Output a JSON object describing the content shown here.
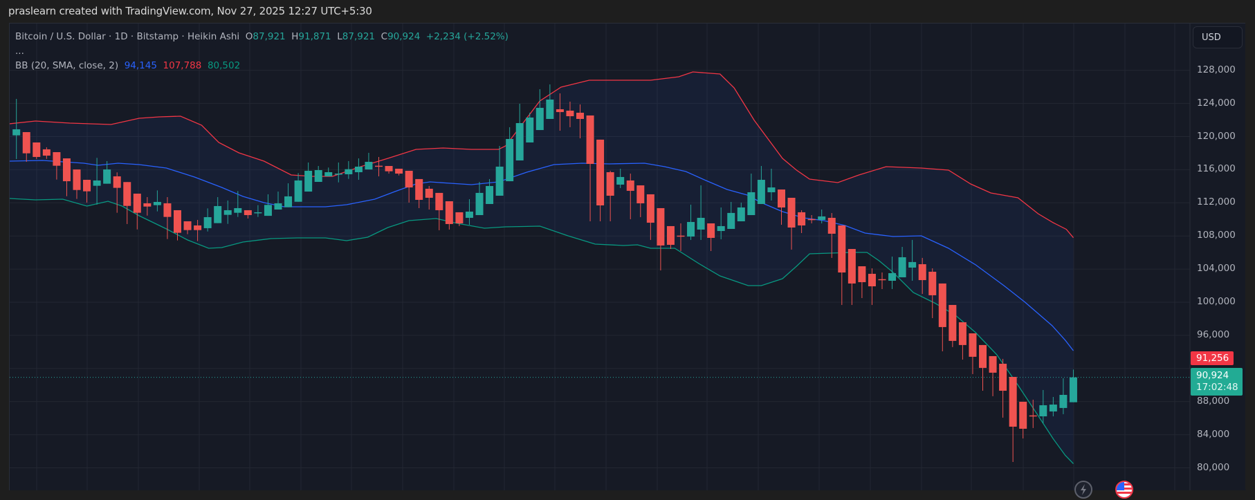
{
  "watermark": "praslearn created with TradingView.com, Nov 27, 2025 12:27 UTC+5:30",
  "legend": {
    "symbol": "Bitcoin / U.S. Dollar · 1D · Bitstamp · Heikin Ashi",
    "o_label": "O",
    "o_value": "87,921",
    "h_label": "H",
    "h_value": "91,871",
    "l_label": "L",
    "l_value": "87,921",
    "c_label": "C",
    "c_value": "90,924",
    "change": "+2,234 (+2.52%)",
    "collapse": "...",
    "bb_name": "BB (20, SMA, close, 2)",
    "bb_basis": "94,145",
    "bb_upper": "107,788",
    "bb_lower": "80,502"
  },
  "currency_button": "USD",
  "price_axis": {
    "labels": [
      "128,000",
      "124,000",
      "120,000",
      "116,000",
      "112,000",
      "108,000",
      "104,000",
      "100,000",
      "96,000",
      "88,000",
      "84,000",
      "80,000"
    ],
    "high_tag": "91,256",
    "last_price_tag": "90,924",
    "countdown": "17:02:48"
  },
  "icons": {
    "bolt": "lightning-icon",
    "flag": "us-flag-icon"
  },
  "colors": {
    "up": "#26a69a",
    "down": "#ef5350",
    "bb_upper": "#f23645",
    "bb_basis": "#2962ff",
    "bb_lower": "#089981",
    "grid": "#232732",
    "background": "#161a25"
  },
  "chart_data": {
    "type": "candlestick",
    "title": "Bitcoin / U.S. Dollar · 1D · Bitstamp · Heikin Ashi",
    "ylabel": "USD",
    "ylim": [
      78000,
      130000
    ],
    "yticks": [
      80000,
      84000,
      88000,
      96000,
      100000,
      104000,
      108000,
      112000,
      116000,
      120000,
      124000,
      128000
    ],
    "grid": true,
    "last_price": 90924,
    "high_marker": 91256,
    "candles": [
      [
        120150,
        124550,
        117290,
        120880
      ],
      [
        120540,
        120540,
        116950,
        117980
      ],
      [
        119290,
        119290,
        117290,
        117540
      ],
      [
        118460,
        118710,
        117310,
        117700
      ],
      [
        118120,
        118120,
        114810,
        116480
      ],
      [
        117370,
        117370,
        112800,
        114610
      ],
      [
        116030,
        116030,
        112470,
        113550
      ],
      [
        114780,
        114780,
        112030,
        113390
      ],
      [
        114060,
        117430,
        111780,
        114700
      ],
      [
        114310,
        117040,
        114310,
        116030
      ],
      [
        115200,
        115680,
        110800,
        113810
      ],
      [
        114510,
        114510,
        109440,
        111630
      ],
      [
        113110,
        113110,
        108790,
        110800
      ],
      [
        111940,
        112690,
        110460,
        111550
      ],
      [
        111720,
        113500,
        110970,
        112110
      ],
      [
        111940,
        112690,
        107630,
        110300
      ],
      [
        111110,
        111110,
        107460,
        108380
      ],
      [
        109770,
        109770,
        108210,
        108710
      ],
      [
        109270,
        109940,
        107380,
        108710
      ],
      [
        108940,
        111330,
        108540,
        110270
      ],
      [
        109550,
        112690,
        109550,
        111610
      ],
      [
        110550,
        112280,
        109460,
        111110
      ],
      [
        110800,
        113420,
        110300,
        111360
      ],
      [
        111110,
        111110,
        110110,
        110520
      ],
      [
        110800,
        111720,
        110300,
        110860
      ],
      [
        110430,
        113030,
        110430,
        111750
      ],
      [
        111190,
        113360,
        111190,
        111940
      ],
      [
        111470,
        114360,
        111470,
        112780
      ],
      [
        112130,
        115590,
        112130,
        114700
      ],
      [
        113360,
        116870,
        113360,
        115870
      ],
      [
        114530,
        116450,
        114530,
        115950
      ],
      [
        115200,
        116260,
        115200,
        115700
      ],
      [
        115480,
        116870,
        114470,
        115530
      ],
      [
        115450,
        117040,
        114890,
        116060
      ],
      [
        115700,
        117370,
        114780,
        116370
      ],
      [
        116030,
        118040,
        116030,
        116950
      ],
      [
        116480,
        117540,
        115200,
        116420
      ],
      [
        116450,
        116450,
        115530,
        115810
      ],
      [
        116120,
        116120,
        115310,
        115530
      ],
      [
        115870,
        115870,
        112030,
        113860
      ],
      [
        114870,
        114870,
        111360,
        112360
      ],
      [
        113700,
        114030,
        111190,
        112610
      ],
      [
        113200,
        113200,
        108690,
        111110
      ],
      [
        112190,
        112190,
        108770,
        109440
      ],
      [
        110860,
        110860,
        109190,
        109520
      ],
      [
        110190,
        112440,
        109350,
        110940
      ],
      [
        110520,
        114530,
        110520,
        113200
      ],
      [
        111860,
        114870,
        111860,
        114030
      ],
      [
        112860,
        118870,
        112860,
        116370
      ],
      [
        114610,
        121130,
        114610,
        119710
      ],
      [
        117120,
        123970,
        117120,
        121630
      ],
      [
        119290,
        122880,
        119290,
        122300
      ],
      [
        120790,
        125720,
        120790,
        123470
      ],
      [
        122130,
        126300,
        122130,
        124470
      ],
      [
        123300,
        125220,
        120710,
        122960
      ],
      [
        123130,
        124220,
        121130,
        122460
      ],
      [
        122880,
        123880,
        119790,
        122130
      ],
      [
        122550,
        122550,
        109770,
        116700
      ],
      [
        119630,
        119630,
        109770,
        111690
      ],
      [
        115700,
        115870,
        109770,
        112860
      ],
      [
        114200,
        116120,
        113780,
        115120
      ],
      [
        114700,
        115530,
        110020,
        113450
      ],
      [
        114110,
        114110,
        110270,
        111940
      ],
      [
        113030,
        113030,
        107520,
        109600
      ],
      [
        111360,
        111360,
        103840,
        106850
      ],
      [
        109190,
        109190,
        106430,
        106930
      ],
      [
        108040,
        109520,
        106180,
        107990
      ],
      [
        107930,
        111780,
        107520,
        109690
      ],
      [
        108770,
        114110,
        107520,
        110190
      ],
      [
        109520,
        109520,
        106180,
        107770
      ],
      [
        108600,
        111440,
        107600,
        109190
      ],
      [
        108850,
        112110,
        108850,
        110780
      ],
      [
        109770,
        112030,
        109770,
        111440
      ],
      [
        110520,
        115530,
        110520,
        113280
      ],
      [
        111860,
        116450,
        111860,
        114780
      ],
      [
        113280,
        116120,
        112280,
        113860
      ],
      [
        113610,
        113610,
        109350,
        111440
      ],
      [
        112610,
        112610,
        106350,
        109020
      ],
      [
        110860,
        111110,
        108350,
        109270
      ],
      [
        110040,
        110520,
        109520,
        110000
      ],
      [
        109940,
        111190,
        109520,
        110360
      ],
      [
        110190,
        110770,
        105350,
        108270
      ],
      [
        109270,
        109270,
        99670,
        103590
      ],
      [
        106430,
        106430,
        99670,
        102260
      ],
      [
        104340,
        104340,
        100500,
        102420
      ],
      [
        103430,
        104090,
        99670,
        101920
      ],
      [
        102780,
        103590,
        101590,
        102730
      ],
      [
        102590,
        105510,
        101590,
        103510
      ],
      [
        103010,
        106680,
        103010,
        105430
      ],
      [
        104180,
        107520,
        102590,
        104850
      ],
      [
        104590,
        105350,
        101000,
        102670
      ],
      [
        103680,
        104090,
        98080,
        100840
      ],
      [
        102260,
        102260,
        94070,
        97000
      ],
      [
        99670,
        99670,
        94580,
        95330
      ],
      [
        97580,
        97580,
        93070,
        94830
      ],
      [
        96240,
        96240,
        91320,
        93410
      ],
      [
        94830,
        94830,
        89310,
        92070
      ],
      [
        93490,
        93490,
        88650,
        91490
      ],
      [
        92570,
        93160,
        86060,
        89310
      ],
      [
        90980,
        90980,
        80710,
        84970
      ],
      [
        87980,
        87980,
        83550,
        84720
      ],
      [
        86330,
        88230,
        84810,
        86280
      ],
      [
        86220,
        89400,
        85390,
        87560
      ],
      [
        86810,
        88560,
        86220,
        87640
      ],
      [
        87230,
        90820,
        86480,
        88810
      ],
      [
        87921,
        91871,
        87921,
        90924
      ]
    ],
    "bollinger_bands": {
      "params": "20, SMA, close, 2",
      "upper": [
        [
          -0.7,
          121545
        ],
        [
          1.9,
          121879
        ],
        [
          5.3,
          121629
        ],
        [
          9.4,
          121462
        ],
        [
          12.2,
          122214
        ],
        [
          14.2,
          122381
        ],
        [
          16.3,
          122465
        ],
        [
          18.4,
          121378
        ],
        [
          20.1,
          119291
        ],
        [
          22.1,
          118038
        ],
        [
          24.6,
          117036
        ],
        [
          27.3,
          115366
        ],
        [
          29.4,
          115199
        ],
        [
          31.4,
          115199
        ],
        [
          34.2,
          116368
        ],
        [
          36.9,
          117370
        ],
        [
          39.7,
          118456
        ],
        [
          42.4,
          118623
        ],
        [
          45.2,
          118456
        ],
        [
          47.9,
          118456
        ],
        [
          48.6,
          118873
        ],
        [
          52.0,
          124301
        ],
        [
          54.1,
          125971
        ],
        [
          56.9,
          126806
        ],
        [
          60.3,
          126806
        ],
        [
          63.0,
          126806
        ],
        [
          65.8,
          127224
        ],
        [
          67.2,
          127808
        ],
        [
          69.9,
          127557
        ],
        [
          71.3,
          125887
        ],
        [
          73.3,
          121963
        ],
        [
          76.1,
          117370
        ],
        [
          77.5,
          115951
        ],
        [
          78.8,
          114865
        ],
        [
          81.6,
          114448
        ],
        [
          83.7,
          115366
        ],
        [
          86.4,
          116368
        ],
        [
          89.9,
          116201
        ],
        [
          92.6,
          115951
        ],
        [
          94.8,
          114281
        ],
        [
          96.8,
          113195
        ],
        [
          99.5,
          112611
        ],
        [
          101.5,
          110690
        ],
        [
          103.0,
          109600
        ],
        [
          104.3,
          108800
        ],
        [
          105.0,
          107788
        ]
      ],
      "basis": [
        [
          -0.7,
          117037
        ],
        [
          2.6,
          117120
        ],
        [
          6.7,
          116786
        ],
        [
          8.1,
          116535
        ],
        [
          10.1,
          116786
        ],
        [
          12.2,
          116619
        ],
        [
          14.9,
          116201
        ],
        [
          17.7,
          115116
        ],
        [
          20.4,
          113863
        ],
        [
          22.5,
          112778
        ],
        [
          24.6,
          112026
        ],
        [
          26.6,
          111525
        ],
        [
          28.7,
          111525
        ],
        [
          30.7,
          111525
        ],
        [
          32.8,
          111775
        ],
        [
          35.6,
          112444
        ],
        [
          37.6,
          113362
        ],
        [
          39.7,
          114281
        ],
        [
          41.1,
          114531
        ],
        [
          43.1,
          114364
        ],
        [
          45.2,
          114197
        ],
        [
          47.9,
          114531
        ],
        [
          50.7,
          115700
        ],
        [
          53.4,
          116619
        ],
        [
          56.2,
          116786
        ],
        [
          58.9,
          116702
        ],
        [
          62.4,
          116786
        ],
        [
          64.4,
          116368
        ],
        [
          66.5,
          115783
        ],
        [
          68.5,
          114698
        ],
        [
          70.6,
          113613
        ],
        [
          72.6,
          112945
        ],
        [
          74.0,
          112026
        ],
        [
          76.1,
          110941
        ],
        [
          78.2,
          110189
        ],
        [
          80.2,
          109855
        ],
        [
          82.3,
          109271
        ],
        [
          84.3,
          108352
        ],
        [
          87.1,
          107935
        ],
        [
          89.9,
          108018
        ],
        [
          92.6,
          106515
        ],
        [
          95.3,
          104511
        ],
        [
          98.1,
          102006
        ],
        [
          100.2,
          100002
        ],
        [
          102.9,
          97163
        ],
        [
          104.2,
          95400
        ],
        [
          105.0,
          94145
        ]
      ],
      "lower": [
        [
          -0.7,
          112527
        ],
        [
          1.9,
          112361
        ],
        [
          4.6,
          112444
        ],
        [
          7.0,
          111609
        ],
        [
          9.1,
          112194
        ],
        [
          10.5,
          111609
        ],
        [
          12.2,
          110439
        ],
        [
          14.9,
          108853
        ],
        [
          17.0,
          107517
        ],
        [
          19.1,
          106515
        ],
        [
          20.4,
          106598
        ],
        [
          22.5,
          107266
        ],
        [
          25.3,
          107684
        ],
        [
          27.9,
          107767
        ],
        [
          30.7,
          107767
        ],
        [
          32.8,
          107433
        ],
        [
          34.9,
          107851
        ],
        [
          36.9,
          109020
        ],
        [
          39.0,
          109855
        ],
        [
          41.7,
          110106
        ],
        [
          43.8,
          109521
        ],
        [
          46.5,
          108937
        ],
        [
          48.6,
          109104
        ],
        [
          52.0,
          109188
        ],
        [
          54.8,
          108018
        ],
        [
          57.5,
          107016
        ],
        [
          60.3,
          106849
        ],
        [
          61.7,
          106932
        ],
        [
          63.0,
          106515
        ],
        [
          65.4,
          106515
        ],
        [
          67.9,
          104595
        ],
        [
          69.9,
          103175
        ],
        [
          72.7,
          102006
        ],
        [
          74.0,
          102006
        ],
        [
          76.1,
          102841
        ],
        [
          77.5,
          104344
        ],
        [
          78.8,
          105847
        ],
        [
          80.9,
          105930
        ],
        [
          83.0,
          106014
        ],
        [
          84.5,
          106014
        ],
        [
          85.7,
          105012
        ],
        [
          87.1,
          103593
        ],
        [
          89.1,
          101171
        ],
        [
          91.2,
          99919
        ],
        [
          93.3,
          98416
        ],
        [
          95.3,
          96328
        ],
        [
          97.4,
          93656
        ],
        [
          99.5,
          89982
        ],
        [
          101.5,
          86308
        ],
        [
          103.0,
          83500
        ],
        [
          104.2,
          81500
        ],
        [
          105.0,
          80502
        ]
      ]
    }
  }
}
